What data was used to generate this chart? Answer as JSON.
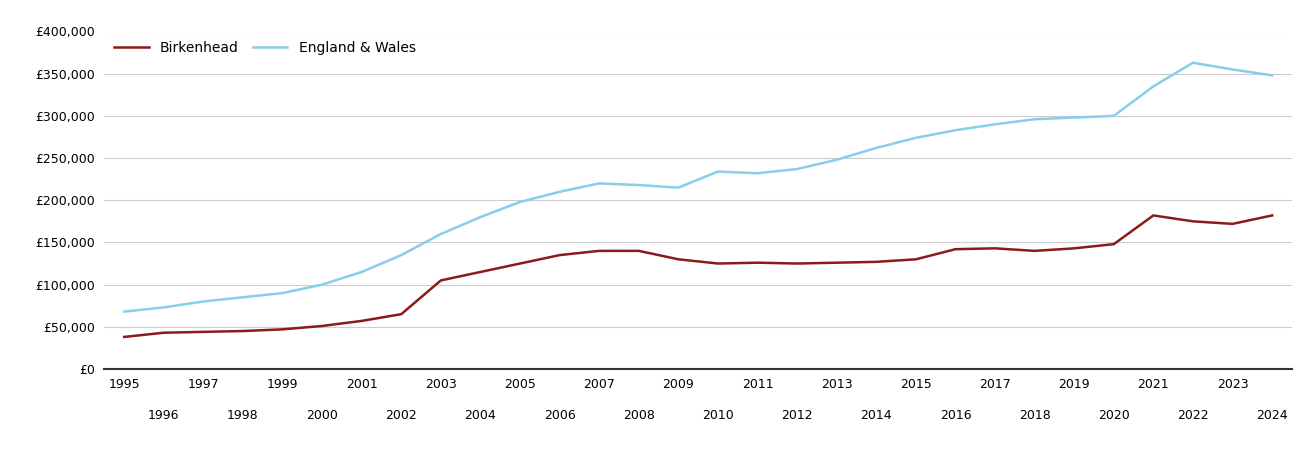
{
  "title": "",
  "birkenhead_label": "Birkenhead",
  "ew_label": "England & Wales",
  "birkenhead_color": "#8B1A1A",
  "ew_color": "#87CEEB",
  "background_color": "#ffffff",
  "grid_color": "#cccccc",
  "years": [
    1995,
    1996,
    1997,
    1998,
    1999,
    2000,
    2001,
    2002,
    2003,
    2004,
    2005,
    2006,
    2007,
    2008,
    2009,
    2010,
    2011,
    2012,
    2013,
    2014,
    2015,
    2016,
    2017,
    2018,
    2019,
    2020,
    2021,
    2022,
    2023,
    2024
  ],
  "birkenhead": [
    38000,
    43000,
    44000,
    45000,
    47000,
    51000,
    57000,
    65000,
    105000,
    115000,
    125000,
    135000,
    140000,
    140000,
    130000,
    125000,
    126000,
    125000,
    126000,
    127000,
    130000,
    142000,
    143000,
    140000,
    143000,
    148000,
    182000,
    175000,
    172000,
    182000
  ],
  "england_wales": [
    68000,
    73000,
    80000,
    85000,
    90000,
    100000,
    115000,
    135000,
    160000,
    180000,
    198000,
    210000,
    220000,
    218000,
    215000,
    234000,
    232000,
    237000,
    248000,
    262000,
    274000,
    283000,
    290000,
    296000,
    298000,
    300000,
    335000,
    363000,
    355000,
    348000
  ],
  "ylim": [
    0,
    400000
  ],
  "yticks": [
    0,
    50000,
    100000,
    150000,
    200000,
    250000,
    300000,
    350000,
    400000
  ],
  "xlim": [
    1994.5,
    2024.5
  ],
  "odd_years": [
    1995,
    1997,
    1999,
    2001,
    2003,
    2005,
    2007,
    2009,
    2011,
    2013,
    2015,
    2017,
    2019,
    2021,
    2023
  ],
  "even_years": [
    1996,
    1998,
    2000,
    2002,
    2004,
    2006,
    2008,
    2010,
    2012,
    2014,
    2016,
    2018,
    2020,
    2022,
    2024
  ],
  "line_width": 1.8,
  "figsize": [
    13.05,
    4.5
  ],
  "dpi": 100
}
